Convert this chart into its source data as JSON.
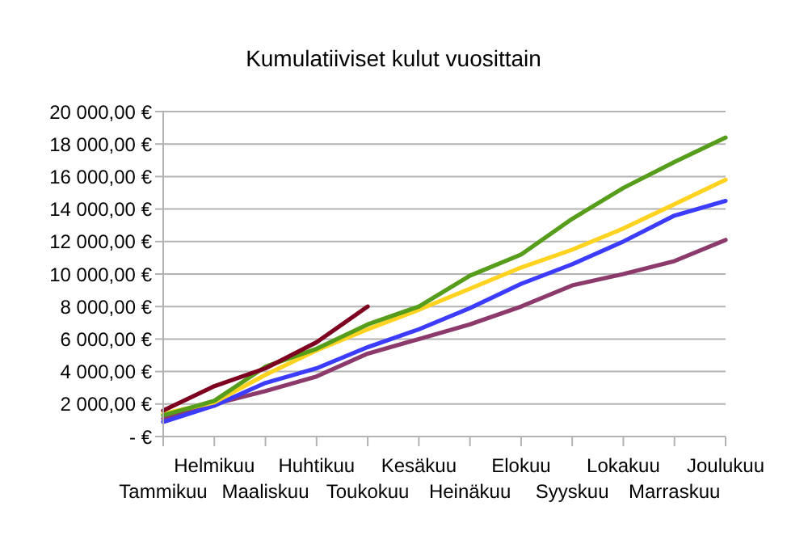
{
  "chart_data": {
    "type": "line",
    "title": "Kumulatiiviset kulut vuosittain",
    "categories": [
      "Tammikuu",
      "Helmikuu",
      "Maaliskuu",
      "Huhtikuu",
      "Toukokuu",
      "Kesäkuu",
      "Heinäkuu",
      "Elokuu",
      "Syyskuu",
      "Lokakuu",
      "Marraskuu",
      "Joulukuu"
    ],
    "series": [
      {
        "color": "#8b3a6b",
        "values": [
          1100,
          2000,
          2800,
          3700,
          5100,
          6000,
          6900,
          8000,
          9300,
          10000,
          10800,
          12100
        ]
      },
      {
        "color": "#3c3cff",
        "values": [
          900,
          1900,
          3300,
          4200,
          5500,
          6600,
          7900,
          9400,
          10600,
          12000,
          13600,
          14500
        ]
      },
      {
        "color": "#ffd320",
        "values": [
          1400,
          2100,
          3800,
          5300,
          6600,
          7800,
          9100,
          10400,
          11500,
          12800,
          14300,
          15800
        ]
      },
      {
        "color": "#579d1c",
        "values": [
          1300,
          2200,
          4300,
          5400,
          6900,
          8000,
          9900,
          11200,
          13400,
          15300,
          16900,
          18400
        ]
      },
      {
        "color": "#7e0021",
        "values": [
          1600,
          3100,
          4200,
          5800,
          8000,
          null,
          null,
          null,
          null,
          null,
          null,
          null
        ]
      }
    ],
    "ylim": [
      0,
      20000
    ],
    "yticks": [
      {
        "value": 0,
        "label": "- €"
      },
      {
        "value": 2000,
        "label": "2 000,00 €"
      },
      {
        "value": 4000,
        "label": "4 000,00 €"
      },
      {
        "value": 6000,
        "label": "6 000,00 €"
      },
      {
        "value": 8000,
        "label": "8 000,00 €"
      },
      {
        "value": 10000,
        "label": "10 000,00 €"
      },
      {
        "value": 12000,
        "label": "12 000,00 €"
      },
      {
        "value": 14000,
        "label": "14 000,00 €"
      },
      {
        "value": 16000,
        "label": "16 000,00 €"
      },
      {
        "value": 18000,
        "label": "18 000,00 €"
      },
      {
        "value": 20000,
        "label": "20 000,00 €"
      }
    ],
    "grid": "y",
    "marker": "none",
    "line_style": "solid"
  }
}
